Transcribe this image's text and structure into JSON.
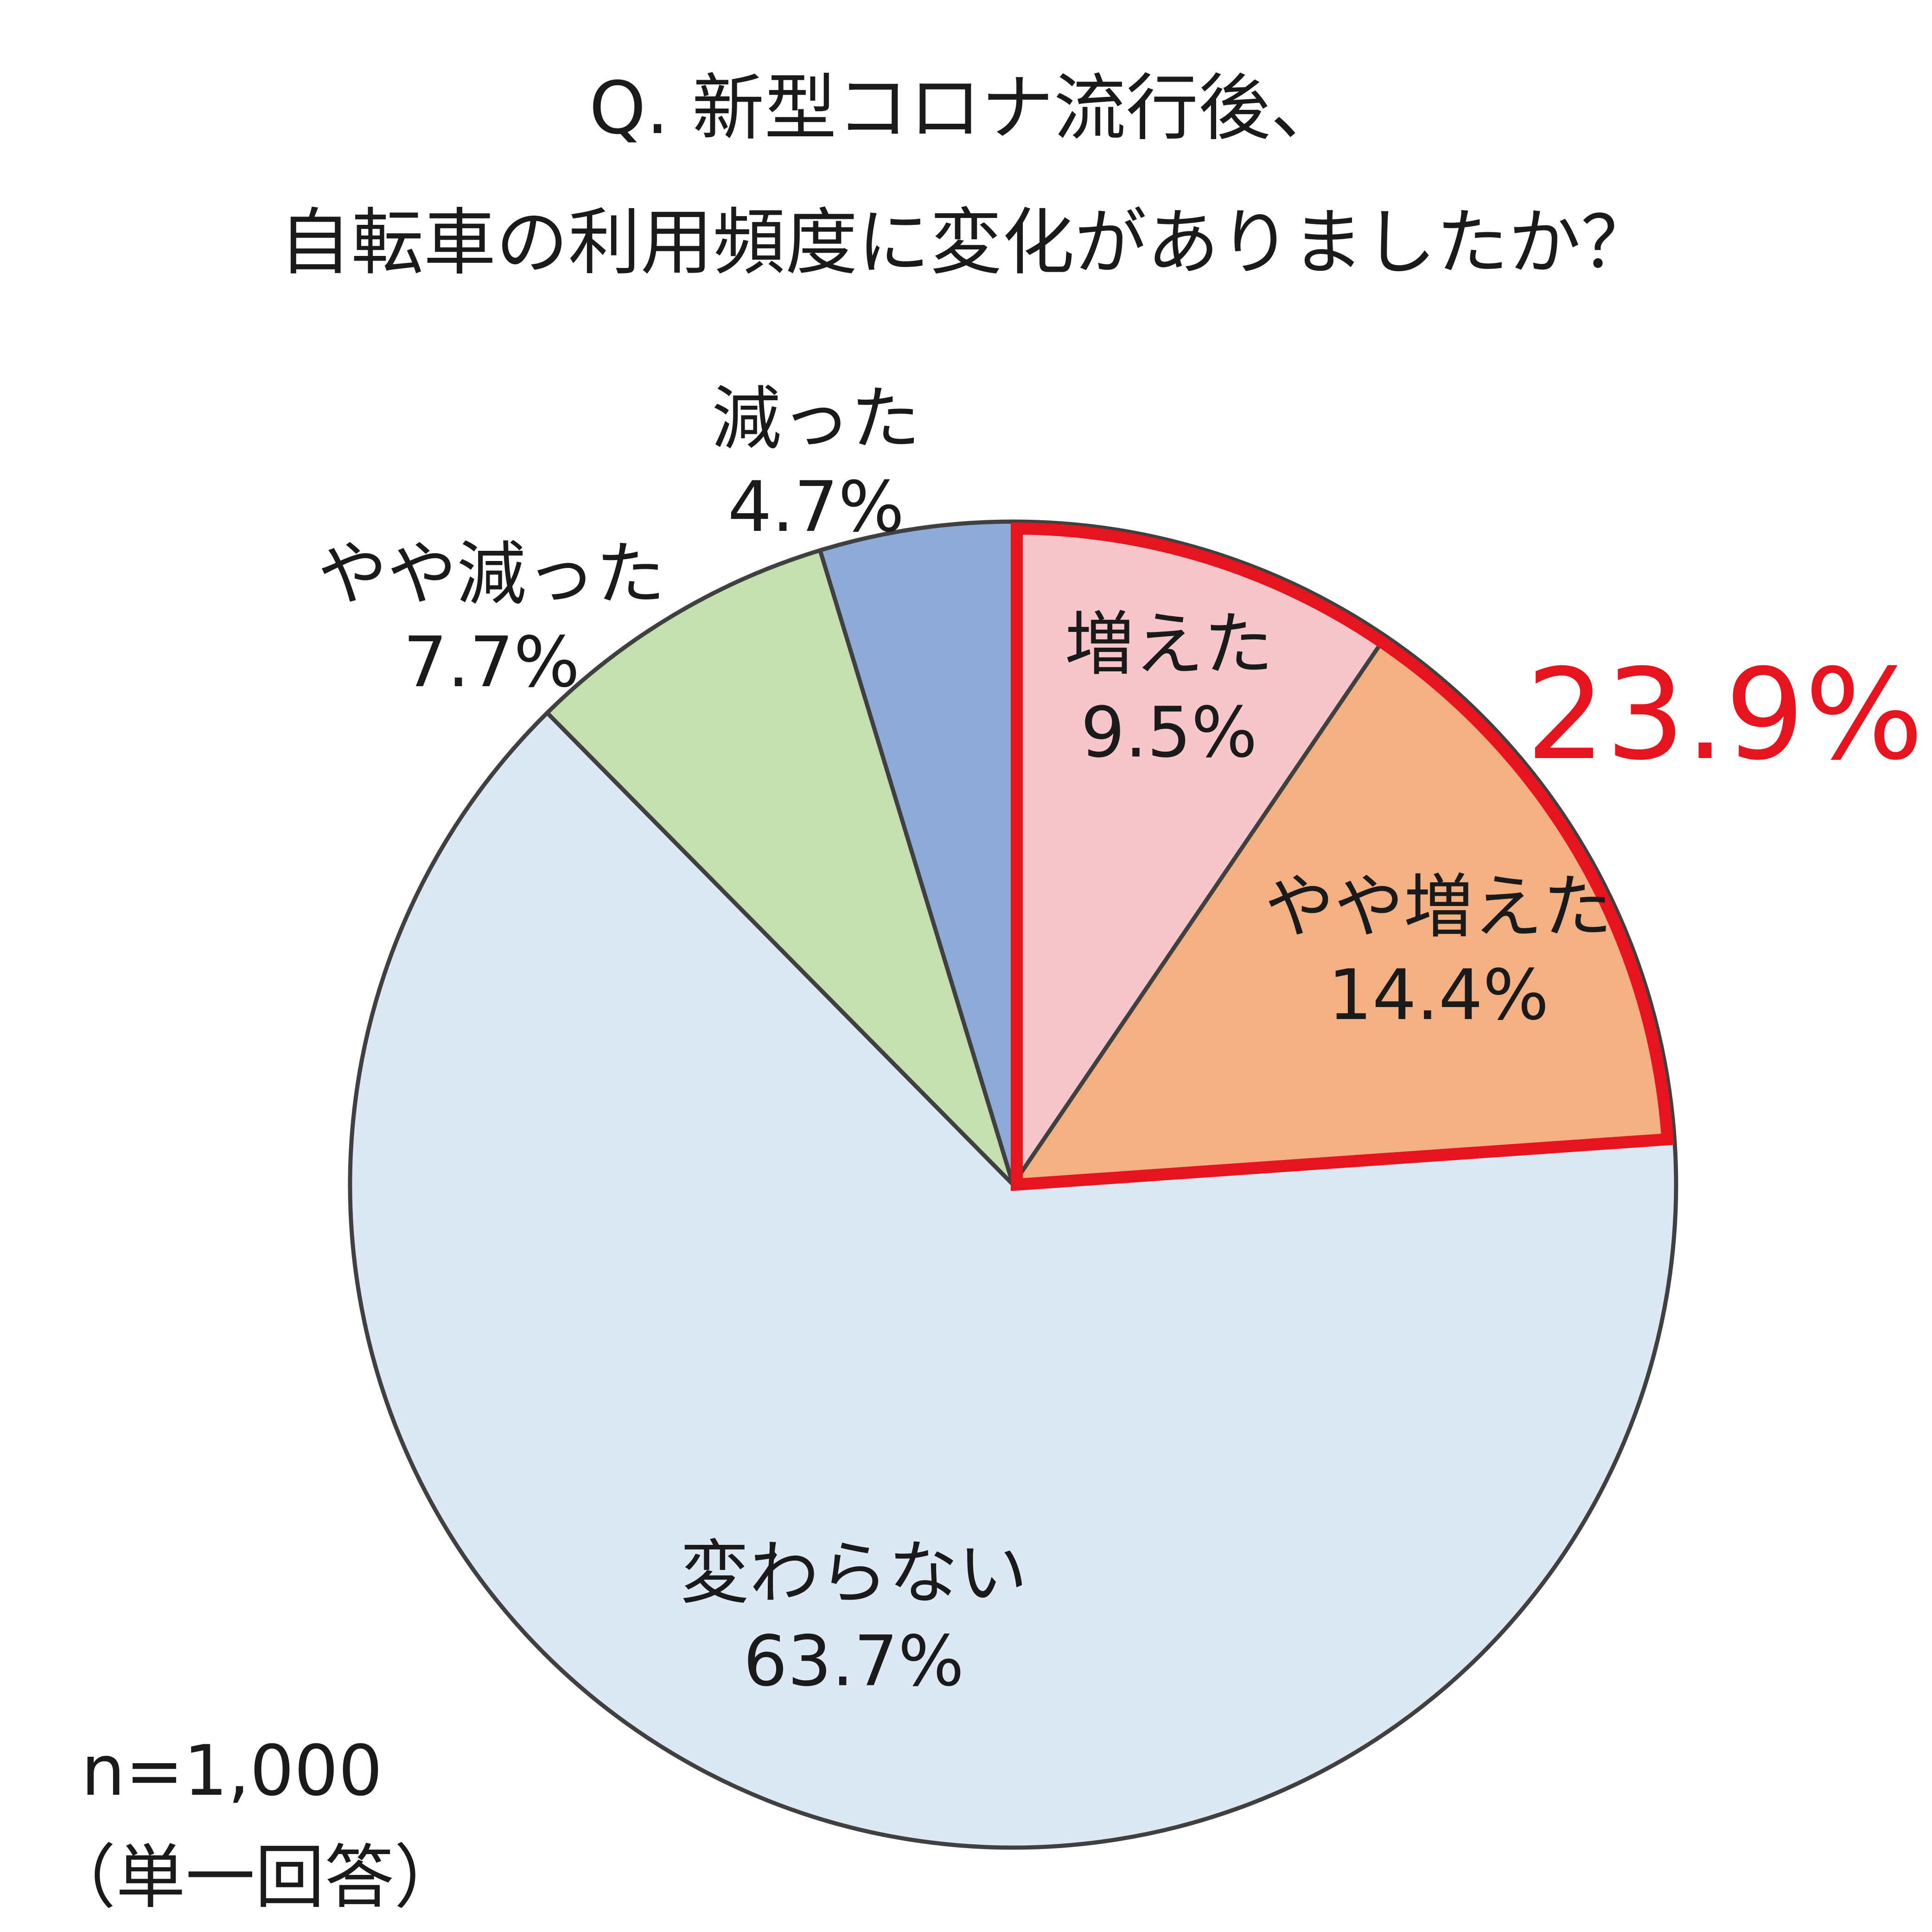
{
  "title": {
    "line1": "Q. 新型コロナ流行後、",
    "line2": "自転車の利用頻度に変化がありましたか？"
  },
  "note": {
    "sample": "n=1,000",
    "answer_type": "（単一回答）"
  },
  "chart_data": {
    "type": "pie",
    "start_angle_deg": 0,
    "direction": "clockwise",
    "slices": [
      {
        "label": "増えた",
        "value": 9.5,
        "value_label": "9.5%",
        "color": "#f6c6cb"
      },
      {
        "label": "やや増えた",
        "value": 14.4,
        "value_label": "14.4%",
        "color": "#f3b083"
      },
      {
        "label": "変わらない",
        "value": 63.7,
        "value_label": "63.7%",
        "color": "#dde8f5"
      },
      {
        "label": "やや減った",
        "value": 7.7,
        "value_label": "7.7%",
        "color": "#c6dfb1"
      },
      {
        "label": "減った",
        "value": 4.7,
        "value_label": "4.7%",
        "color": "#8eaad6"
      }
    ],
    "highlight": {
      "slices": [
        "増えた",
        "やや増えた"
      ],
      "total_label": "23.9%",
      "color": "#e5141f"
    },
    "edge_color": "#404040"
  }
}
